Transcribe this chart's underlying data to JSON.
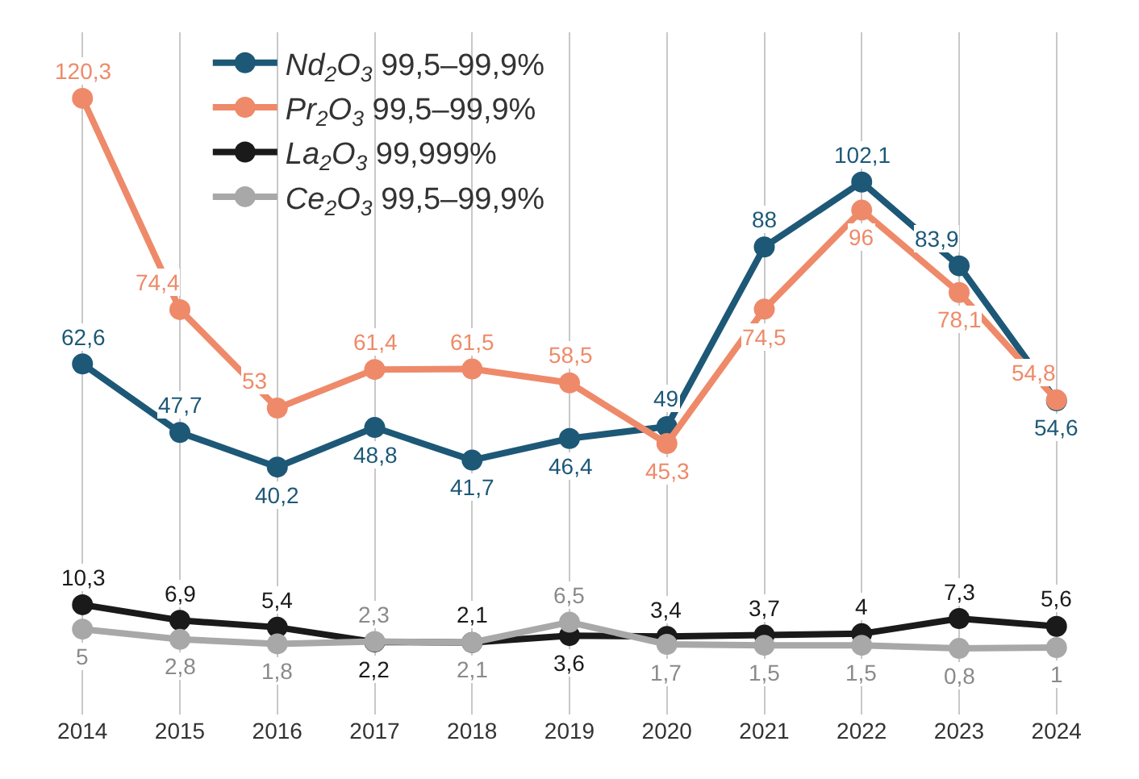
{
  "chart_data": {
    "type": "line",
    "categories": [
      "2014",
      "2015",
      "2016",
      "2017",
      "2018",
      "2019",
      "2020",
      "2021",
      "2022",
      "2023",
      "2024"
    ],
    "series": [
      {
        "name": "Nd$_{2}$O$_{3}$ 99,5–99,9%",
        "color": "#1d5877",
        "values": [
          62.6,
          47.7,
          40.2,
          48.8,
          41.7,
          46.4,
          49,
          88,
          102.1,
          83.9,
          54.6
        ],
        "value_labels": [
          "62,6",
          "47,7",
          "40,2",
          "48,8",
          "41,7",
          "46,4",
          "49",
          "88",
          "102,1",
          "83,9",
          "54,6"
        ]
      },
      {
        "name": "Pr$_{2}$O$_{3}$ 99,5–99,9%",
        "color": "#ee8a69",
        "values": [
          120.3,
          74.4,
          53,
          61.4,
          61.5,
          58.5,
          45.3,
          74.5,
          96,
          78.1,
          54.8
        ],
        "value_labels": [
          "120,3",
          "74,4",
          "53",
          "61,4",
          "61,5",
          "58,5",
          "45,3",
          "74,5",
          "96",
          "78,1",
          "54,8"
        ]
      },
      {
        "name": "La$_{2}$O$_{3}$ 99,999%",
        "color": "#1a1a1a",
        "values": [
          10.3,
          6.9,
          5.4,
          2.2,
          2.1,
          3.6,
          3.4,
          3.7,
          4,
          7.3,
          5.6
        ],
        "value_labels": [
          "10,3",
          "6,9",
          "5,4",
          "2,2",
          "2,1",
          "3,6",
          "3,4",
          "3,7",
          "4",
          "7,3",
          "5,6"
        ]
      },
      {
        "name": "Ce$_{2}$O$_{3}$ 99,5–99,9%",
        "color": "#a8a8a8",
        "values": [
          5,
          2.8,
          1.8,
          2.3,
          2.1,
          6.5,
          1.7,
          1.5,
          1.5,
          0.8,
          1
        ],
        "value_labels": [
          "5",
          "2,8",
          "1,8",
          "2,3",
          "2,1",
          "6,5",
          "1,7",
          "1,5",
          "1,5",
          "0,8",
          "1"
        ]
      }
    ],
    "marker": "circle",
    "line_style": "solid",
    "grid": "x",
    "legend": "top",
    "tick_labels": "x",
    "data_labels": true
  }
}
